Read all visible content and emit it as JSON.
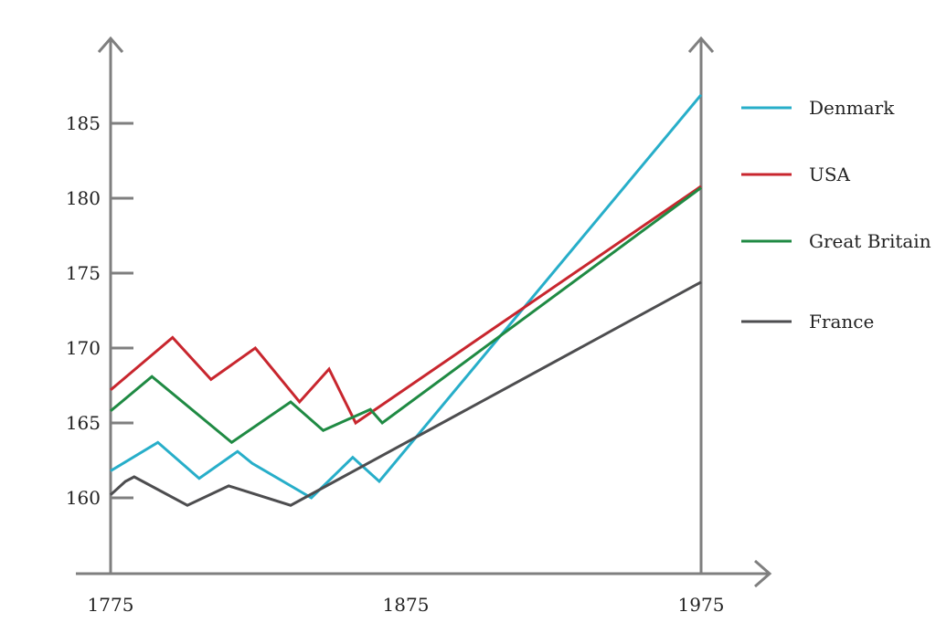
{
  "chart_data": {
    "type": "line",
    "title": "",
    "xlabel": "",
    "ylabel": "",
    "xlim": [
      1775,
      1975
    ],
    "ylim": [
      155,
      190
    ],
    "grid": false,
    "legend_position": "right",
    "x_ticks": [
      1775,
      1875,
      1975
    ],
    "x_tick_labels": [
      "1775",
      "1875",
      "1975"
    ],
    "y_ticks": [
      160,
      165,
      170,
      175,
      180,
      185
    ],
    "y_tick_labels": [
      "160",
      "165",
      "170",
      "175",
      "180",
      "185"
    ],
    "series": [
      {
        "name": "Denmark",
        "color": "#27aec9",
        "points": [
          [
            1775,
            161.8
          ],
          [
            1791,
            163.7
          ],
          [
            1805,
            161.3
          ],
          [
            1818,
            163.1
          ],
          [
            1823,
            162.3
          ],
          [
            1843,
            160.0
          ],
          [
            1857,
            162.7
          ],
          [
            1866,
            161.1
          ],
          [
            1975,
            186.9
          ]
        ]
      },
      {
        "name": "USA",
        "color": "#c8262e",
        "points": [
          [
            1775,
            167.2
          ],
          [
            1796,
            170.7
          ],
          [
            1809,
            167.9
          ],
          [
            1824,
            170.0
          ],
          [
            1839,
            166.4
          ],
          [
            1849,
            168.6
          ],
          [
            1858,
            165.0
          ],
          [
            1975,
            180.8
          ]
        ]
      },
      {
        "name": "Great Britain",
        "color": "#1f8a43",
        "points": [
          [
            1775,
            165.8
          ],
          [
            1789,
            168.1
          ],
          [
            1816,
            163.7
          ],
          [
            1836,
            166.4
          ],
          [
            1847,
            164.5
          ],
          [
            1863,
            165.9
          ],
          [
            1867,
            165.0
          ],
          [
            1975,
            180.7
          ]
        ]
      },
      {
        "name": "France",
        "color": "#4d4d4f",
        "points": [
          [
            1775,
            160.2
          ],
          [
            1780,
            161.1
          ],
          [
            1783,
            161.4
          ],
          [
            1801,
            159.5
          ],
          [
            1815,
            160.8
          ],
          [
            1836,
            159.5
          ],
          [
            1975,
            174.4
          ]
        ]
      }
    ]
  }
}
